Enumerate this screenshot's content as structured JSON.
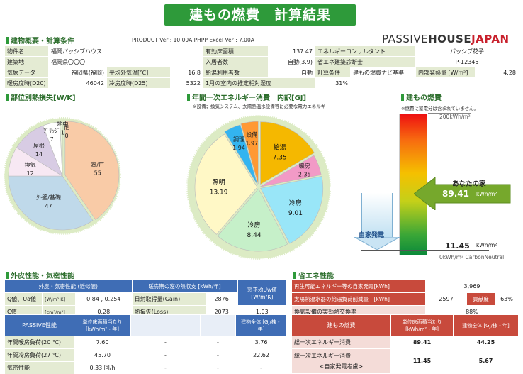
{
  "title": "建もの燃費　計算結果",
  "overview": {
    "heading": "建物概要・計算条件",
    "version": "PRODUCT Ver : 10.00A  PHPP Excel Ver : 7.00A",
    "logo_a": "PASSIVE",
    "logo_b": "HOUSE",
    "logo_c": "JAPAN"
  },
  "info": {
    "r1": [
      "物件名",
      "福岡パッシブハウス",
      "有効床面積",
      "137.47",
      "エネルギーコンサルタント",
      "パッシブ花子"
    ],
    "r2": [
      "建築地",
      "福岡県〇〇〇",
      "入居者数",
      "自動(3.9)",
      "省エネ建築診断士",
      "P-12345"
    ],
    "r3": [
      "気象データ",
      "福岡県(福岡)",
      "平均外気温[℃]",
      "16.8",
      "給湯利用者数",
      "自動",
      "計算条件",
      "建もの燃費ナビ基準",
      "内部発熱量 [W/m²]",
      "4.28"
    ],
    "r4": [
      "暖房度時(D20)",
      "46042",
      "冷房度時(D25)",
      "5322",
      "1月の室内の推定相対湿度",
      "31%"
    ]
  },
  "heat_loss": {
    "heading": "部位別熱損失[W/K]"
  },
  "energy": {
    "heading": "年間一次エネルギー消費　内訳[GJ]",
    "note": "※設備；換気システム、太陽熱温水設備等に必要な電力エネルギー"
  },
  "nenpi": {
    "heading": "建もの燃費",
    "note": "※燃費に家電分は含まれていません。",
    "top": "200kWh/m²",
    "your_label": "あなたの家",
    "your_value": "89.41",
    "your_unit": "kWh/m²",
    "self_label": "自家発電",
    "v2": "11.45",
    "v2_unit": "kWh/m²",
    "bottom": "0kWh/m²  CarbonNeutral"
  },
  "chart_data": [
    {
      "type": "pie",
      "title": "部位別熱損失[W/K]",
      "categories": [
        "窓/戸",
        "外壁/基礎",
        "換気",
        "屋根",
        "ﾌﾞﾘｯｼﾞ",
        "地中",
        "他"
      ],
      "values": [
        55,
        47,
        12,
        14,
        7,
        1,
        0
      ],
      "colors": [
        "#f9cba7",
        "#bfd9ea",
        "#f7e8f3",
        "#d8cce4",
        "#ffffff",
        "#e8f2d8",
        "#ffffff"
      ]
    },
    {
      "type": "pie",
      "title": "年間一次エネルギー消費　内訳[GJ]",
      "categories": [
        "給湯",
        "暖房",
        "冷房",
        "冷房",
        "照明",
        "調理",
        "設備"
      ],
      "values": [
        7.35,
        2.35,
        9.01,
        8.44,
        13.19,
        1.94,
        1.97
      ],
      "colors": [
        "#f5b800",
        "#f29ac6",
        "#99e6f8",
        "#c6f0c9",
        "#fff8c6",
        "#33b4f0",
        "#ff9933"
      ]
    }
  ],
  "envelope": {
    "heading": "外皮性能・気密性能",
    "h1": "外皮・気密性能 (近似値)",
    "h2": "暖房期の窓の熱収支 [kWh/年]",
    "h3": "窓平均Uw値 [W/m²K]",
    "q_label": "Q値、Ua値",
    "q_unit": "[W/m² K]",
    "q_val": "0.84 , 0.254",
    "gain_label": "日射取得量(Gain)",
    "gain_val": "2876",
    "uw_val": "1.03",
    "c_label": "C値",
    "c_unit": "[cm²/m²]",
    "c_val": "0.28",
    "loss_label": "熱損失(Loss)",
    "loss_val": "2073"
  },
  "passive": {
    "h1": "PASSIVE性能",
    "h2": "単位床面積当たり [kWh/m²・年]",
    "h3": "建物全体 [GJ/棟・年]",
    "rows": [
      [
        "年間暖房負荷(20 ℃)",
        "7.60",
        "-",
        "-",
        "3.76"
      ],
      [
        "年間冷房負荷(27 ℃)",
        "45.70",
        "-",
        "-",
        "22.62"
      ],
      [
        "気密性能",
        "0.33 回/h",
        "-",
        "-",
        "-"
      ]
    ]
  },
  "eco": {
    "heading": "省エネ性能",
    "l1": "再生可能エネルギー等の自家発電[kWh]",
    "v1": "3,969",
    "l2": "太陽熱温水器の給湯負荷削減量　[kWh]",
    "v2": "2597",
    "l2b": "貢献度",
    "v2b": "63%",
    "l3": "換気設備の実効熱交換率",
    "v3": "88%",
    "h1": "建もの燃費",
    "h2": "単位床面積当たり [kWh/m²・年]",
    "h3": "建物全体 [GJ/棟・年]",
    "r1": [
      "総一次エネルギー消費",
      "89.41",
      "44.25"
    ],
    "r2a": "総一次エネルギー消費",
    "r2b": "<自家発電考慮>",
    "r2": [
      "11.45",
      "5.67"
    ]
  }
}
